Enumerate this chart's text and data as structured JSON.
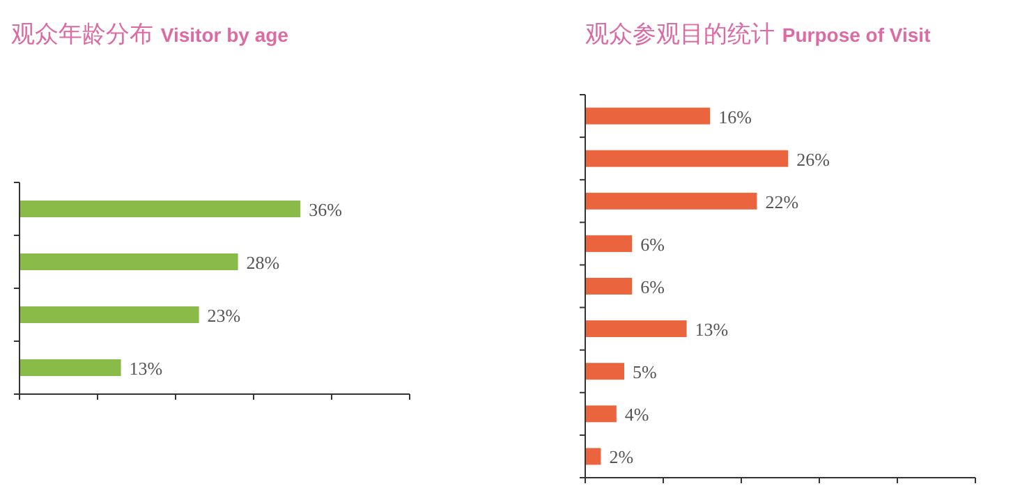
{
  "chart_data": [
    {
      "type": "bar",
      "orientation": "horizontal",
      "title": "观众年龄分布 Visitor by age",
      "categories": [
        null,
        null,
        null,
        null
      ],
      "values": [
        36,
        28,
        23,
        13
      ],
      "value_labels": [
        "36%",
        "28%",
        "23%",
        "13%"
      ],
      "color": "#8aba48",
      "xlim": [
        0,
        50
      ],
      "xticks": [
        {
          "value": 0,
          "label": null
        },
        {
          "value": 10,
          "label": null
        },
        {
          "value": 20,
          "label": null
        },
        {
          "value": 30,
          "label": null
        },
        {
          "value": 40,
          "label": null
        },
        {
          "value": 50,
          "label": null
        }
      ]
    },
    {
      "type": "bar",
      "orientation": "horizontal",
      "title": "观众参观目的统计 Purpose of Visit",
      "categories": [
        null,
        null,
        null,
        null,
        null,
        null,
        null,
        null,
        null
      ],
      "values": [
        16,
        26,
        22,
        6,
        6,
        13,
        5,
        4,
        2
      ],
      "value_labels": [
        "16%",
        "26%",
        "22%",
        "6%",
        "6%",
        "13%",
        "5%",
        "4%",
        "2%"
      ],
      "color": "#ea643e",
      "xlim": [
        0,
        50
      ],
      "xticks": [
        {
          "value": 0,
          "label": null
        },
        {
          "value": 10,
          "label": null
        },
        {
          "value": 20,
          "label": null
        },
        {
          "value": 30,
          "label": null
        },
        {
          "value": 40,
          "label": null
        },
        {
          "value": 50,
          "label": null
        }
      ]
    }
  ]
}
